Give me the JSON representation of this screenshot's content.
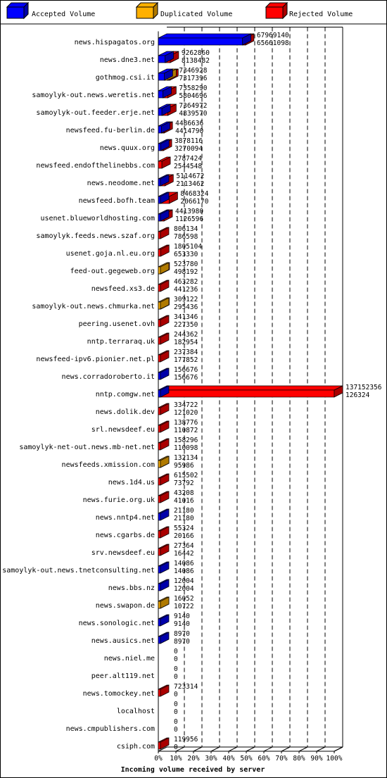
{
  "chart_data": {
    "type": "bar",
    "orientation": "horizontal",
    "bar_style": "3d",
    "title": "Incoming volume received by server",
    "legend_position": "top",
    "legend": [
      {
        "key": "accepted",
        "label": "Accepted Volume",
        "color": "#0000ff"
      },
      {
        "key": "duplicated",
        "label": "Duplicated Volume",
        "color": "#ffb000"
      },
      {
        "key": "rejected",
        "label": "Rejected Volume",
        "color": "#ff0000"
      }
    ],
    "x_ticks": [
      "0%",
      "10%",
      "20%",
      "30%",
      "40%",
      "50%",
      "60%",
      "70%",
      "80%",
      "90%",
      "100%"
    ],
    "xlim": [
      0,
      137152356
    ],
    "grid": true,
    "rows": [
      {
        "server": "news.hispagatos.org",
        "total_label": "67969140",
        "second_label": "65661098",
        "total": 67969140,
        "accepted": 65661098,
        "duplicated": 0
      },
      {
        "server": "news.dne3.net",
        "total_label": "9262860",
        "second_label": "8138482",
        "total": 9262860,
        "accepted": 5300000,
        "duplicated": 0
      },
      {
        "server": "gothmog.csi.it",
        "total_label": "7346928",
        "second_label": "7317396",
        "total": 7346928,
        "accepted": 4600000,
        "duplicated": 2700000
      },
      {
        "server": "samoylyk-out.news.weretis.net",
        "total_label": "7358290",
        "second_label": "5804696",
        "total": 7358290,
        "accepted": 3600000,
        "duplicated": 0
      },
      {
        "server": "samoylyk-out.feeder.erje.net",
        "total_label": "7364972",
        "second_label": "4839570",
        "total": 7364972,
        "accepted": 2800000,
        "duplicated": 0
      },
      {
        "server": "newsfeed.fu-berlin.de",
        "total_label": "4486636",
        "second_label": "4414790",
        "total": 4486636,
        "accepted": 2400000,
        "duplicated": 0
      },
      {
        "server": "news.quux.org",
        "total_label": "3878116",
        "second_label": "3270094",
        "total": 3878116,
        "accepted": 1800000,
        "duplicated": 0
      },
      {
        "server": "newsfeed.endofthelinebbs.com",
        "total_label": "2787424",
        "second_label": "2544548",
        "total": 2787424,
        "accepted": 0,
        "duplicated": 0
      },
      {
        "server": "news.neodome.net",
        "total_label": "5114672",
        "second_label": "2113462",
        "total": 5114672,
        "accepted": 1000000,
        "duplicated": 0
      },
      {
        "server": "newsfeed.bofh.team",
        "total_label": "8468324",
        "second_label": "2066170",
        "total": 8468324,
        "accepted": 600000,
        "duplicated": 0
      },
      {
        "server": "usenet.blueworldhosting.com",
        "total_label": "4413980",
        "second_label": "1126596",
        "total": 4413980,
        "accepted": 600000,
        "duplicated": 0
      },
      {
        "server": "samoylyk.feeds.news.szaf.org",
        "total_label": "806134",
        "second_label": "786598",
        "total": 806134,
        "accepted": 0,
        "duplicated": 0
      },
      {
        "server": "usenet.goja.nl.eu.org",
        "total_label": "1805104",
        "second_label": "653330",
        "total": 1805104,
        "accepted": 0,
        "duplicated": 0
      },
      {
        "server": "feed-out.gegeweb.org",
        "total_label": "523780",
        "second_label": "498192",
        "total": 523780,
        "accepted": 0,
        "duplicated": 498192
      },
      {
        "server": "newsfeed.xs3.de",
        "total_label": "463282",
        "second_label": "441236",
        "total": 463282,
        "accepted": 0,
        "duplicated": 0
      },
      {
        "server": "samoylyk-out.news.chmurka.net",
        "total_label": "309122",
        "second_label": "295436",
        "total": 309122,
        "accepted": 0,
        "duplicated": 295436
      },
      {
        "server": "peering.usenet.ovh",
        "total_label": "341346",
        "second_label": "227350",
        "total": 341346,
        "accepted": 0,
        "duplicated": 0
      },
      {
        "server": "nntp.terraraq.uk",
        "total_label": "244362",
        "second_label": "182954",
        "total": 244362,
        "accepted": 0,
        "duplicated": 0
      },
      {
        "server": "newsfeed-ipv6.pionier.net.pl",
        "total_label": "237384",
        "second_label": "177852",
        "total": 237384,
        "accepted": 0,
        "duplicated": 0
      },
      {
        "server": "news.corradoroberto.it",
        "total_label": "156676",
        "second_label": "156676",
        "total": 156676,
        "accepted": 156676,
        "duplicated": 0
      },
      {
        "server": "nntp.comgw.net",
        "total_label": "137152356",
        "second_label": "126324",
        "total": 137152356,
        "accepted": 126324,
        "duplicated": 0
      },
      {
        "server": "news.dolik.dev",
        "total_label": "334722",
        "second_label": "121020",
        "total": 334722,
        "accepted": 0,
        "duplicated": 0
      },
      {
        "server": "srl.newsdeef.eu",
        "total_label": "138776",
        "second_label": "110872",
        "total": 138776,
        "accepted": 0,
        "duplicated": 0
      },
      {
        "server": "samoylyk-net-out.news.mb-net.net",
        "total_label": "158296",
        "second_label": "110098",
        "total": 158296,
        "accepted": 0,
        "duplicated": 0
      },
      {
        "server": "newsfeeds.xmission.com",
        "total_label": "132134",
        "second_label": "95986",
        "total": 132134,
        "accepted": 0,
        "duplicated": 95986
      },
      {
        "server": "news.1d4.us",
        "total_label": "615502",
        "second_label": "73792",
        "total": 615502,
        "accepted": 0,
        "duplicated": 0
      },
      {
        "server": "news.furie.org.uk",
        "total_label": "43208",
        "second_label": "41016",
        "total": 43208,
        "accepted": 0,
        "duplicated": 0
      },
      {
        "server": "news.nntp4.net",
        "total_label": "21180",
        "second_label": "21180",
        "total": 21180,
        "accepted": 21180,
        "duplicated": 0
      },
      {
        "server": "news.cgarbs.de",
        "total_label": "55324",
        "second_label": "20166",
        "total": 55324,
        "accepted": 0,
        "duplicated": 0
      },
      {
        "server": "srv.newsdeef.eu",
        "total_label": "27364",
        "second_label": "16442",
        "total": 27364,
        "accepted": 0,
        "duplicated": 0
      },
      {
        "server": "samoylyk-out.news.tnetconsulting.net",
        "total_label": "14086",
        "second_label": "14086",
        "total": 14086,
        "accepted": 14086,
        "duplicated": 0
      },
      {
        "server": "news.bbs.nz",
        "total_label": "12004",
        "second_label": "12004",
        "total": 12004,
        "accepted": 12004,
        "duplicated": 0
      },
      {
        "server": "news.swapon.de",
        "total_label": "16052",
        "second_label": "10722",
        "total": 16052,
        "accepted": 0,
        "duplicated": 10722
      },
      {
        "server": "news.sonologic.net",
        "total_label": "9140",
        "second_label": "9140",
        "total": 9140,
        "accepted": 9140,
        "duplicated": 0
      },
      {
        "server": "news.ausics.net",
        "total_label": "8970",
        "second_label": "8970",
        "total": 8970,
        "accepted": 8970,
        "duplicated": 0
      },
      {
        "server": "news.niel.me",
        "total_label": "0",
        "second_label": "0",
        "total": 0,
        "accepted": 0,
        "duplicated": 0
      },
      {
        "server": "peer.alt119.net",
        "total_label": "0",
        "second_label": "0",
        "total": 0,
        "accepted": 0,
        "duplicated": 0
      },
      {
        "server": "news.tomockey.net",
        "total_label": "723314",
        "second_label": "0",
        "total": 723314,
        "accepted": 0,
        "duplicated": 0
      },
      {
        "server": "localhost",
        "total_label": "0",
        "second_label": "0",
        "total": 0,
        "accepted": 0,
        "duplicated": 0
      },
      {
        "server": "news.cmpublishers.com",
        "total_label": "0",
        "second_label": "0",
        "total": 0,
        "accepted": 0,
        "duplicated": 0
      },
      {
        "server": "csiph.com",
        "total_label": "119956",
        "second_label": "0",
        "total": 119956,
        "accepted": 0,
        "duplicated": 0
      }
    ]
  }
}
